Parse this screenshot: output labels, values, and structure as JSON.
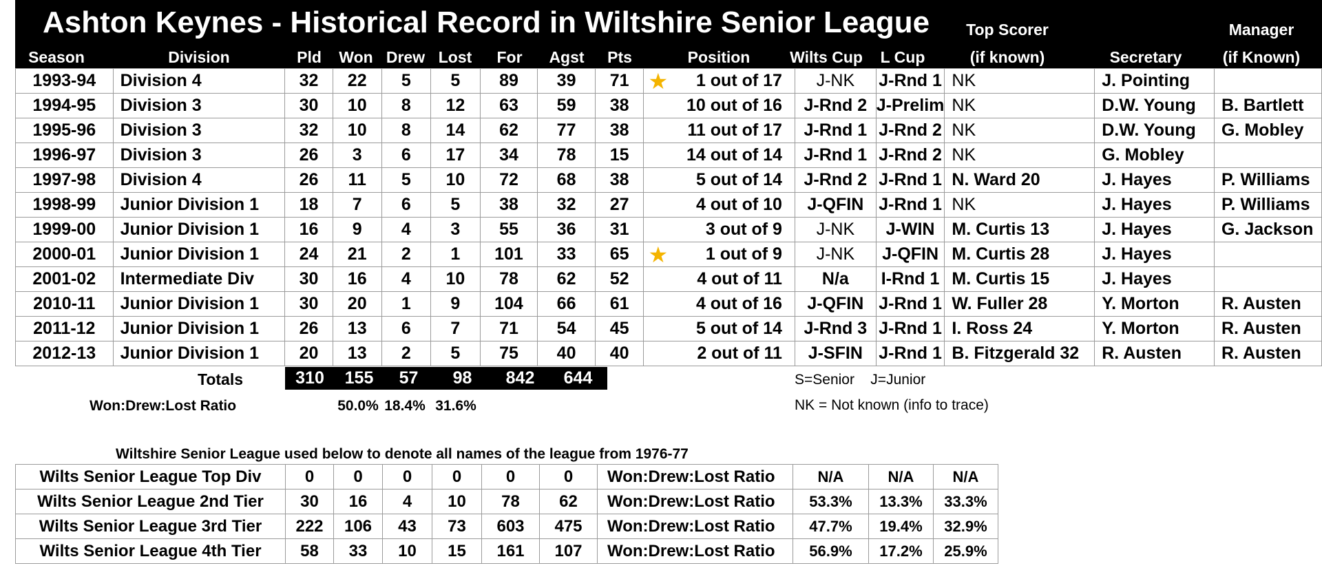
{
  "title": "Ashton Keynes - Historical Record in Wiltshire Senior League",
  "headers": {
    "season": "Season",
    "division": "Division",
    "pld": "Pld",
    "won": "Won",
    "drew": "Drew",
    "lost": "Lost",
    "for": "For",
    "agst": "Agst",
    "pts": "Pts",
    "position": "Position",
    "wilts_cup": "Wilts Cup",
    "l_cup": "L Cup",
    "top_scorer_1": "Top Scorer",
    "top_scorer_2": "(if known)",
    "secretary": "Secretary",
    "manager_1": "Manager",
    "manager_2": "(if Known)"
  },
  "rows": [
    {
      "season": "1993-94",
      "division": "Division 4",
      "pld": "32",
      "won": "22",
      "drew": "5",
      "lost": "5",
      "for": "89",
      "agst": "39",
      "pts": "71",
      "position": "1 out of 17",
      "star": true,
      "wilts_cup": "J-NK",
      "l_cup": "J-Rnd 1",
      "top_scorer": "NK",
      "secretary": "J. Pointing",
      "manager": ""
    },
    {
      "season": "1994-95",
      "division": "Division 3",
      "pld": "30",
      "won": "10",
      "drew": "8",
      "lost": "12",
      "for": "63",
      "agst": "59",
      "pts": "38",
      "position": "10 out of 16",
      "star": false,
      "wilts_cup": "J-Rnd 2",
      "l_cup": "J-Prelim",
      "top_scorer": "NK",
      "secretary": "D.W. Young",
      "manager": "B. Bartlett"
    },
    {
      "season": "1995-96",
      "division": "Division 3",
      "pld": "32",
      "won": "10",
      "drew": "8",
      "lost": "14",
      "for": "62",
      "agst": "77",
      "pts": "38",
      "position": "11 out of 17",
      "star": false,
      "wilts_cup": "J-Rnd 1",
      "l_cup": "J-Rnd 2",
      "top_scorer": "NK",
      "secretary": "D.W. Young",
      "manager": "G. Mobley"
    },
    {
      "season": "1996-97",
      "division": "Division 3",
      "pld": "26",
      "won": "3",
      "drew": "6",
      "lost": "17",
      "for": "34",
      "agst": "78",
      "pts": "15",
      "position": "14 out of 14",
      "star": false,
      "wilts_cup": "J-Rnd 1",
      "l_cup": "J-Rnd 2",
      "top_scorer": "NK",
      "secretary": "G. Mobley",
      "manager": ""
    },
    {
      "season": "1997-98",
      "division": "Division 4",
      "pld": "26",
      "won": "11",
      "drew": "5",
      "lost": "10",
      "for": "72",
      "agst": "68",
      "pts": "38",
      "position": "5 out of 14",
      "star": false,
      "wilts_cup": "J-Rnd 2",
      "l_cup": "J-Rnd 1",
      "top_scorer": "N. Ward 20",
      "secretary": "J. Hayes",
      "manager": "P. Williams"
    },
    {
      "season": "1998-99",
      "division": "Junior Division 1",
      "pld": "18",
      "won": "7",
      "drew": "6",
      "lost": "5",
      "for": "38",
      "agst": "32",
      "pts": "27",
      "position": "4 out of 10",
      "star": false,
      "wilts_cup": "J-QFIN",
      "l_cup": "J-Rnd 1",
      "top_scorer": "NK",
      "secretary": "J. Hayes",
      "manager": "P. Williams"
    },
    {
      "season": "1999-00",
      "division": "Junior Division 1",
      "pld": "16",
      "won": "9",
      "drew": "4",
      "lost": "3",
      "for": "55",
      "agst": "36",
      "pts": "31",
      "position": "3 out of 9",
      "star": false,
      "wilts_cup": "J-NK",
      "l_cup": "J-WIN",
      "top_scorer": "M. Curtis 13",
      "secretary": "J. Hayes",
      "manager": "G. Jackson"
    },
    {
      "season": "2000-01",
      "division": "Junior Division 1",
      "pld": "24",
      "won": "21",
      "drew": "2",
      "lost": "1",
      "for": "101",
      "agst": "33",
      "pts": "65",
      "position": "1 out of 9",
      "star": true,
      "wilts_cup": "J-NK",
      "l_cup": "J-QFIN",
      "top_scorer": "M. Curtis 28",
      "secretary": "J. Hayes",
      "manager": ""
    },
    {
      "season": "2001-02",
      "division": "Intermediate Div",
      "pld": "30",
      "won": "16",
      "drew": "4",
      "lost": "10",
      "for": "78",
      "agst": "62",
      "pts": "52",
      "position": "4 out of 11",
      "star": false,
      "wilts_cup": "N/a",
      "l_cup": "I-Rnd 1",
      "top_scorer": "M. Curtis 15",
      "secretary": "J. Hayes",
      "manager": ""
    },
    {
      "season": "2010-11",
      "division": "Junior Division 1",
      "pld": "30",
      "won": "20",
      "drew": "1",
      "lost": "9",
      "for": "104",
      "agst": "66",
      "pts": "61",
      "position": "4 out of 16",
      "star": false,
      "wilts_cup": "J-QFIN",
      "l_cup": "J-Rnd 1",
      "top_scorer": "W. Fuller 28",
      "secretary": "Y. Morton",
      "manager": "R. Austen"
    },
    {
      "season": "2011-12",
      "division": "Junior Division 1",
      "pld": "26",
      "won": "13",
      "drew": "6",
      "lost": "7",
      "for": "71",
      "agst": "54",
      "pts": "45",
      "position": "5 out of 14",
      "star": false,
      "wilts_cup": "J-Rnd 3",
      "l_cup": "J-Rnd 1",
      "top_scorer": "I. Ross 24",
      "secretary": "Y. Morton",
      "manager": "R. Austen"
    },
    {
      "season": "2012-13",
      "division": "Junior Division 1",
      "pld": "20",
      "won": "13",
      "drew": "2",
      "lost": "5",
      "for": "75",
      "agst": "40",
      "pts": "40",
      "position": "2 out of 11",
      "star": false,
      "wilts_cup": "J-SFIN",
      "l_cup": "J-Rnd 1",
      "top_scorer": "B. Fitzgerald 32",
      "secretary": "R. Austen",
      "manager": "R. Austen"
    }
  ],
  "totals": {
    "label": "Totals",
    "pld": "310",
    "won": "155",
    "drew": "57",
    "lost": "98",
    "for": "842",
    "agst": "644"
  },
  "ratio": {
    "label": "Won:Drew:Lost Ratio",
    "won": "50.0%",
    "drew": "18.4%",
    "lost": "31.6%"
  },
  "legend": {
    "cups": "S=Senior    J=Junior",
    "nk": "NK = Not known (info to trace)"
  },
  "history_note": "Wiltshire Senior League used below to denote all names of the league from 1976-77",
  "summary": [
    {
      "label": "Wilts Senior League Top Div",
      "pld": "0",
      "won": "0",
      "drew": "0",
      "lost": "0",
      "for": "0",
      "agst": "0",
      "ratio_label": "Won:Drew:Lost Ratio",
      "won_pct": "N/A",
      "drew_pct": "N/A",
      "lost_pct": "N/A"
    },
    {
      "label": "Wilts Senior League 2nd Tier",
      "pld": "30",
      "won": "16",
      "drew": "4",
      "lost": "10",
      "for": "78",
      "agst": "62",
      "ratio_label": "Won:Drew:Lost Ratio",
      "won_pct": "53.3%",
      "drew_pct": "13.3%",
      "lost_pct": "33.3%"
    },
    {
      "label": "Wilts Senior League 3rd Tier",
      "pld": "222",
      "won": "106",
      "drew": "43",
      "lost": "73",
      "for": "603",
      "agst": "475",
      "ratio_label": "Won:Drew:Lost Ratio",
      "won_pct": "47.7%",
      "drew_pct": "19.4%",
      "lost_pct": "32.9%"
    },
    {
      "label": "Wilts Senior League 4th Tier",
      "pld": "58",
      "won": "33",
      "drew": "10",
      "lost": "15",
      "for": "161",
      "agst": "107",
      "ratio_label": "Won:Drew:Lost Ratio",
      "won_pct": "56.9%",
      "drew_pct": "17.2%",
      "lost_pct": "25.9%"
    }
  ],
  "colors": {
    "header_bg": "#000000",
    "star": "#f4b400"
  },
  "icons": {
    "champion": "star-icon"
  }
}
